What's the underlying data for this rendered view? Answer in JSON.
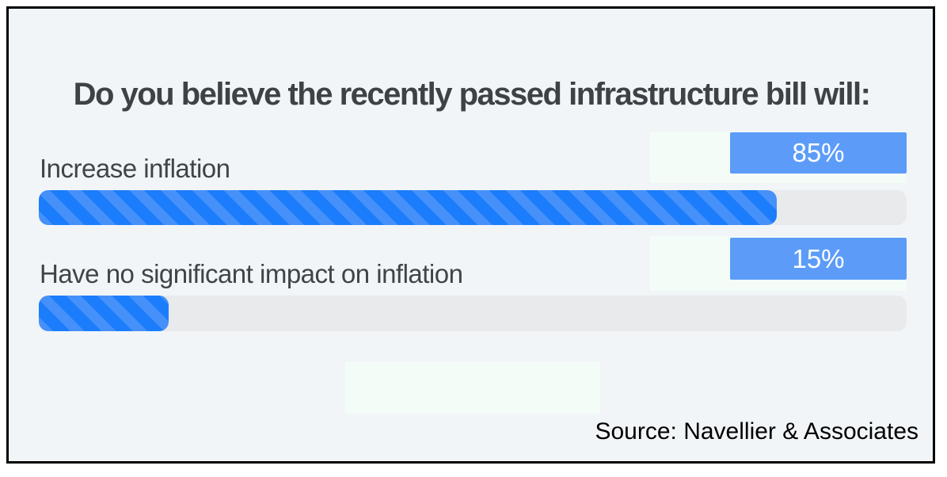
{
  "title": "Do you believe the recently passed infrastructure bill will:",
  "source": "Source: Navellier & Associates",
  "rows": [
    {
      "label": "Increase inflation",
      "value": 85,
      "value_label": "85%"
    },
    {
      "label": "Have no significant impact on inflation",
      "value": 15,
      "value_label": "15%"
    }
  ],
  "chart_data": {
    "type": "bar",
    "orientation": "horizontal",
    "title": "Do you believe the recently passed infrastructure bill will:",
    "categories": [
      "Increase inflation",
      "Have no significant impact on inflation"
    ],
    "values": [
      85,
      15
    ],
    "value_labels": [
      "85%",
      "15%"
    ],
    "xlim": [
      0,
      100
    ],
    "grid": false,
    "legend": false,
    "source": "Source: Navellier & Associates",
    "colors": {
      "bar_fill": "#1b7dfb",
      "bar_stripe": "#4690fa",
      "track": "#e8eaec",
      "value_badge": "#5c9cf8",
      "value_text": "#ffffff",
      "panel_background": "#f1f5f8",
      "title_text": "#3d4247",
      "label_text": "#3f4449",
      "frame_border": "#000000"
    }
  }
}
